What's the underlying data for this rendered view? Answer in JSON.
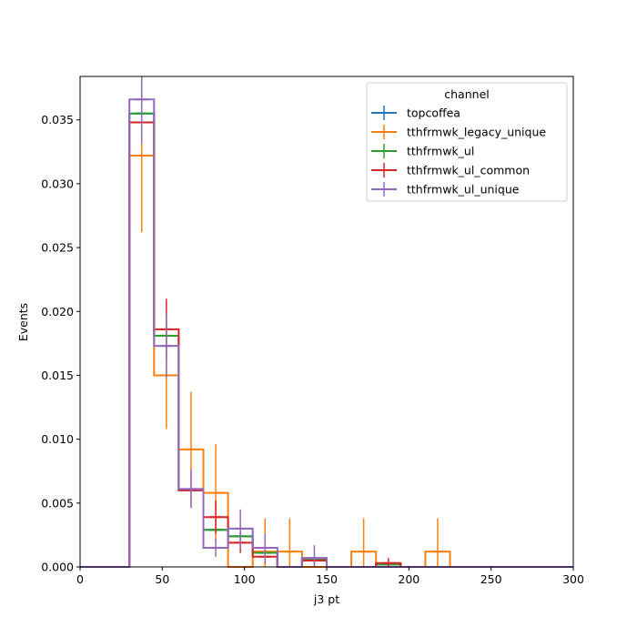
{
  "chart_data": {
    "type": "histogram",
    "xlabel": "j3 pt",
    "ylabel": "Events",
    "xlim": [
      0,
      300
    ],
    "ylim": [
      0,
      0.0384
    ],
    "bin_edges": [
      0,
      15,
      30,
      45,
      60,
      75,
      90,
      105,
      120,
      135,
      150,
      165,
      180,
      195,
      210,
      225,
      240,
      255,
      270,
      285,
      300
    ],
    "x_ticks": [
      "0",
      "50",
      "100",
      "150",
      "200",
      "250",
      "300"
    ],
    "y_ticks": [
      "0.000",
      "0.005",
      "0.010",
      "0.015",
      "0.020",
      "0.025",
      "0.030",
      "0.035"
    ],
    "legend": {
      "title": "channel",
      "position": "top-right"
    },
    "series": [
      {
        "name": "topcoffea",
        "color": "#1f77b4",
        "values": [
          0,
          0,
          0.0355,
          0.0181,
          0.006,
          0.0029,
          0.0024,
          0.0011,
          0,
          0.0006,
          0,
          0,
          0.0002,
          0,
          0,
          0,
          0,
          0,
          0,
          0
        ],
        "errors": [
          0,
          0,
          0,
          0,
          0,
          0,
          0,
          0,
          0,
          0,
          0,
          0,
          0,
          0,
          0,
          0,
          0,
          0,
          0,
          0
        ]
      },
      {
        "name": "tthfrmwk_legacy_unique",
        "color": "#ff7f0e",
        "values": [
          0,
          0,
          0.0322,
          0.015,
          0.0092,
          0.0058,
          0.0,
          0.0012,
          0.0012,
          0.0,
          0.0,
          0.0012,
          0.0,
          0.0,
          0.0012,
          0,
          0,
          0,
          0,
          0
        ],
        "errors": [
          0,
          0,
          0.006,
          0.0042,
          0.0045,
          0.0038,
          0,
          0.0026,
          0.0026,
          0,
          0,
          0.0026,
          0,
          0,
          0.0026,
          0,
          0,
          0,
          0,
          0
        ]
      },
      {
        "name": "tthfrmwk_ul",
        "color": "#2ca02c",
        "values": [
          0,
          0,
          0.0355,
          0.0181,
          0.006,
          0.0029,
          0.0024,
          0.0011,
          0,
          0.0006,
          0,
          0,
          0.0002,
          0,
          0,
          0,
          0,
          0,
          0,
          0
        ],
        "errors": [
          0,
          0,
          0,
          0,
          0,
          0,
          0,
          0,
          0,
          0,
          0,
          0,
          0,
          0,
          0,
          0,
          0,
          0,
          0,
          0
        ]
      },
      {
        "name": "tthfrmwk_ul_common",
        "color": "#d62728",
        "values": [
          0,
          0,
          0.0348,
          0.0186,
          0.006,
          0.0039,
          0.0019,
          0.0008,
          0,
          0.0005,
          0,
          0,
          0.0003,
          0,
          0,
          0,
          0,
          0,
          0,
          0
        ],
        "errors": [
          0,
          0,
          0.0007,
          0.0024,
          0.0,
          0.0013,
          0.0008,
          0.0005,
          0,
          0.0003,
          0,
          0,
          0.0004,
          0,
          0,
          0,
          0,
          0,
          0,
          0
        ]
      },
      {
        "name": "tthfrmwk_ul_unique",
        "color": "#9467bd",
        "values": [
          0,
          0,
          0.0366,
          0.0173,
          0.0061,
          0.0015,
          0.003,
          0.0015,
          0,
          0.0007,
          0,
          0,
          0,
          0,
          0,
          0,
          0,
          0,
          0,
          0
        ],
        "errors": [
          0,
          0,
          0.0035,
          0.0025,
          0.0015,
          0.0007,
          0.0015,
          0.0011,
          0,
          0.001,
          0,
          0,
          0,
          0,
          0,
          0,
          0,
          0,
          0,
          0
        ]
      }
    ]
  }
}
